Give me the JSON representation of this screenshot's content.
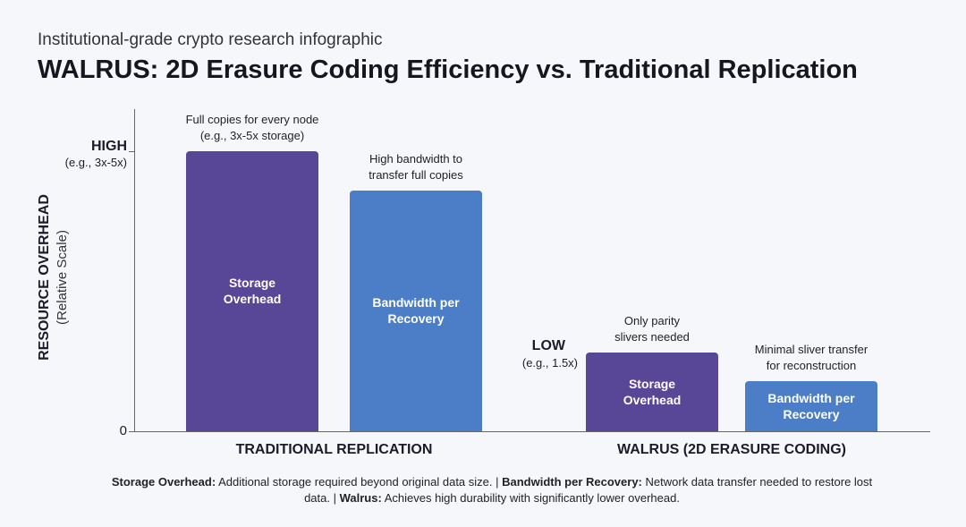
{
  "chart_data": {
    "type": "bar",
    "subtitle": "Institutional-grade crypto research infographic",
    "title": "WALRUS: 2D Erasure Coding Efficiency vs. Traditional Replication",
    "y_label": "RESOURCE OVERHEAD",
    "y_label_note": "(Relative Scale)",
    "categories": [
      "TRADITIONAL REPLICATION",
      "WALRUS (2D ERASURE CODING)"
    ],
    "series": [
      {
        "name": "Storage Overhead",
        "color": "#584696",
        "values": [
          100,
          28
        ]
      },
      {
        "name": "Bandwidth per Recovery",
        "color": "#4b7ec6",
        "values": [
          86,
          18
        ]
      }
    ],
    "ylim": [
      0,
      115
    ],
    "yticks": [
      0,
      {
        "value": 100,
        "label": "HIGH"
      }
    ],
    "high_note": "(e.g., 3x-5x)",
    "low_label": {
      "value": 28,
      "label": "LOW",
      "note": "(e.g., 1.5x)"
    },
    "annotations": [
      [
        [
          "Full copies for every node",
          "(e.g., 3x-5x storage)"
        ],
        [
          "High bandwidth to",
          "transfer full copies"
        ]
      ],
      [
        [
          "Only parity",
          "slivers needed"
        ],
        [
          "Minimal sliver transfer",
          "for reconstruction"
        ]
      ]
    ],
    "footnote": [
      [
        "Storage Overhead:",
        "Additional storage required beyond original data size. |"
      ],
      [
        "Bandwidth per Recovery:",
        "Network data transfer needed to restore lost data. |"
      ],
      [
        "Walrus:",
        "Achieves high durability with significantly lower overhead."
      ]
    ]
  }
}
